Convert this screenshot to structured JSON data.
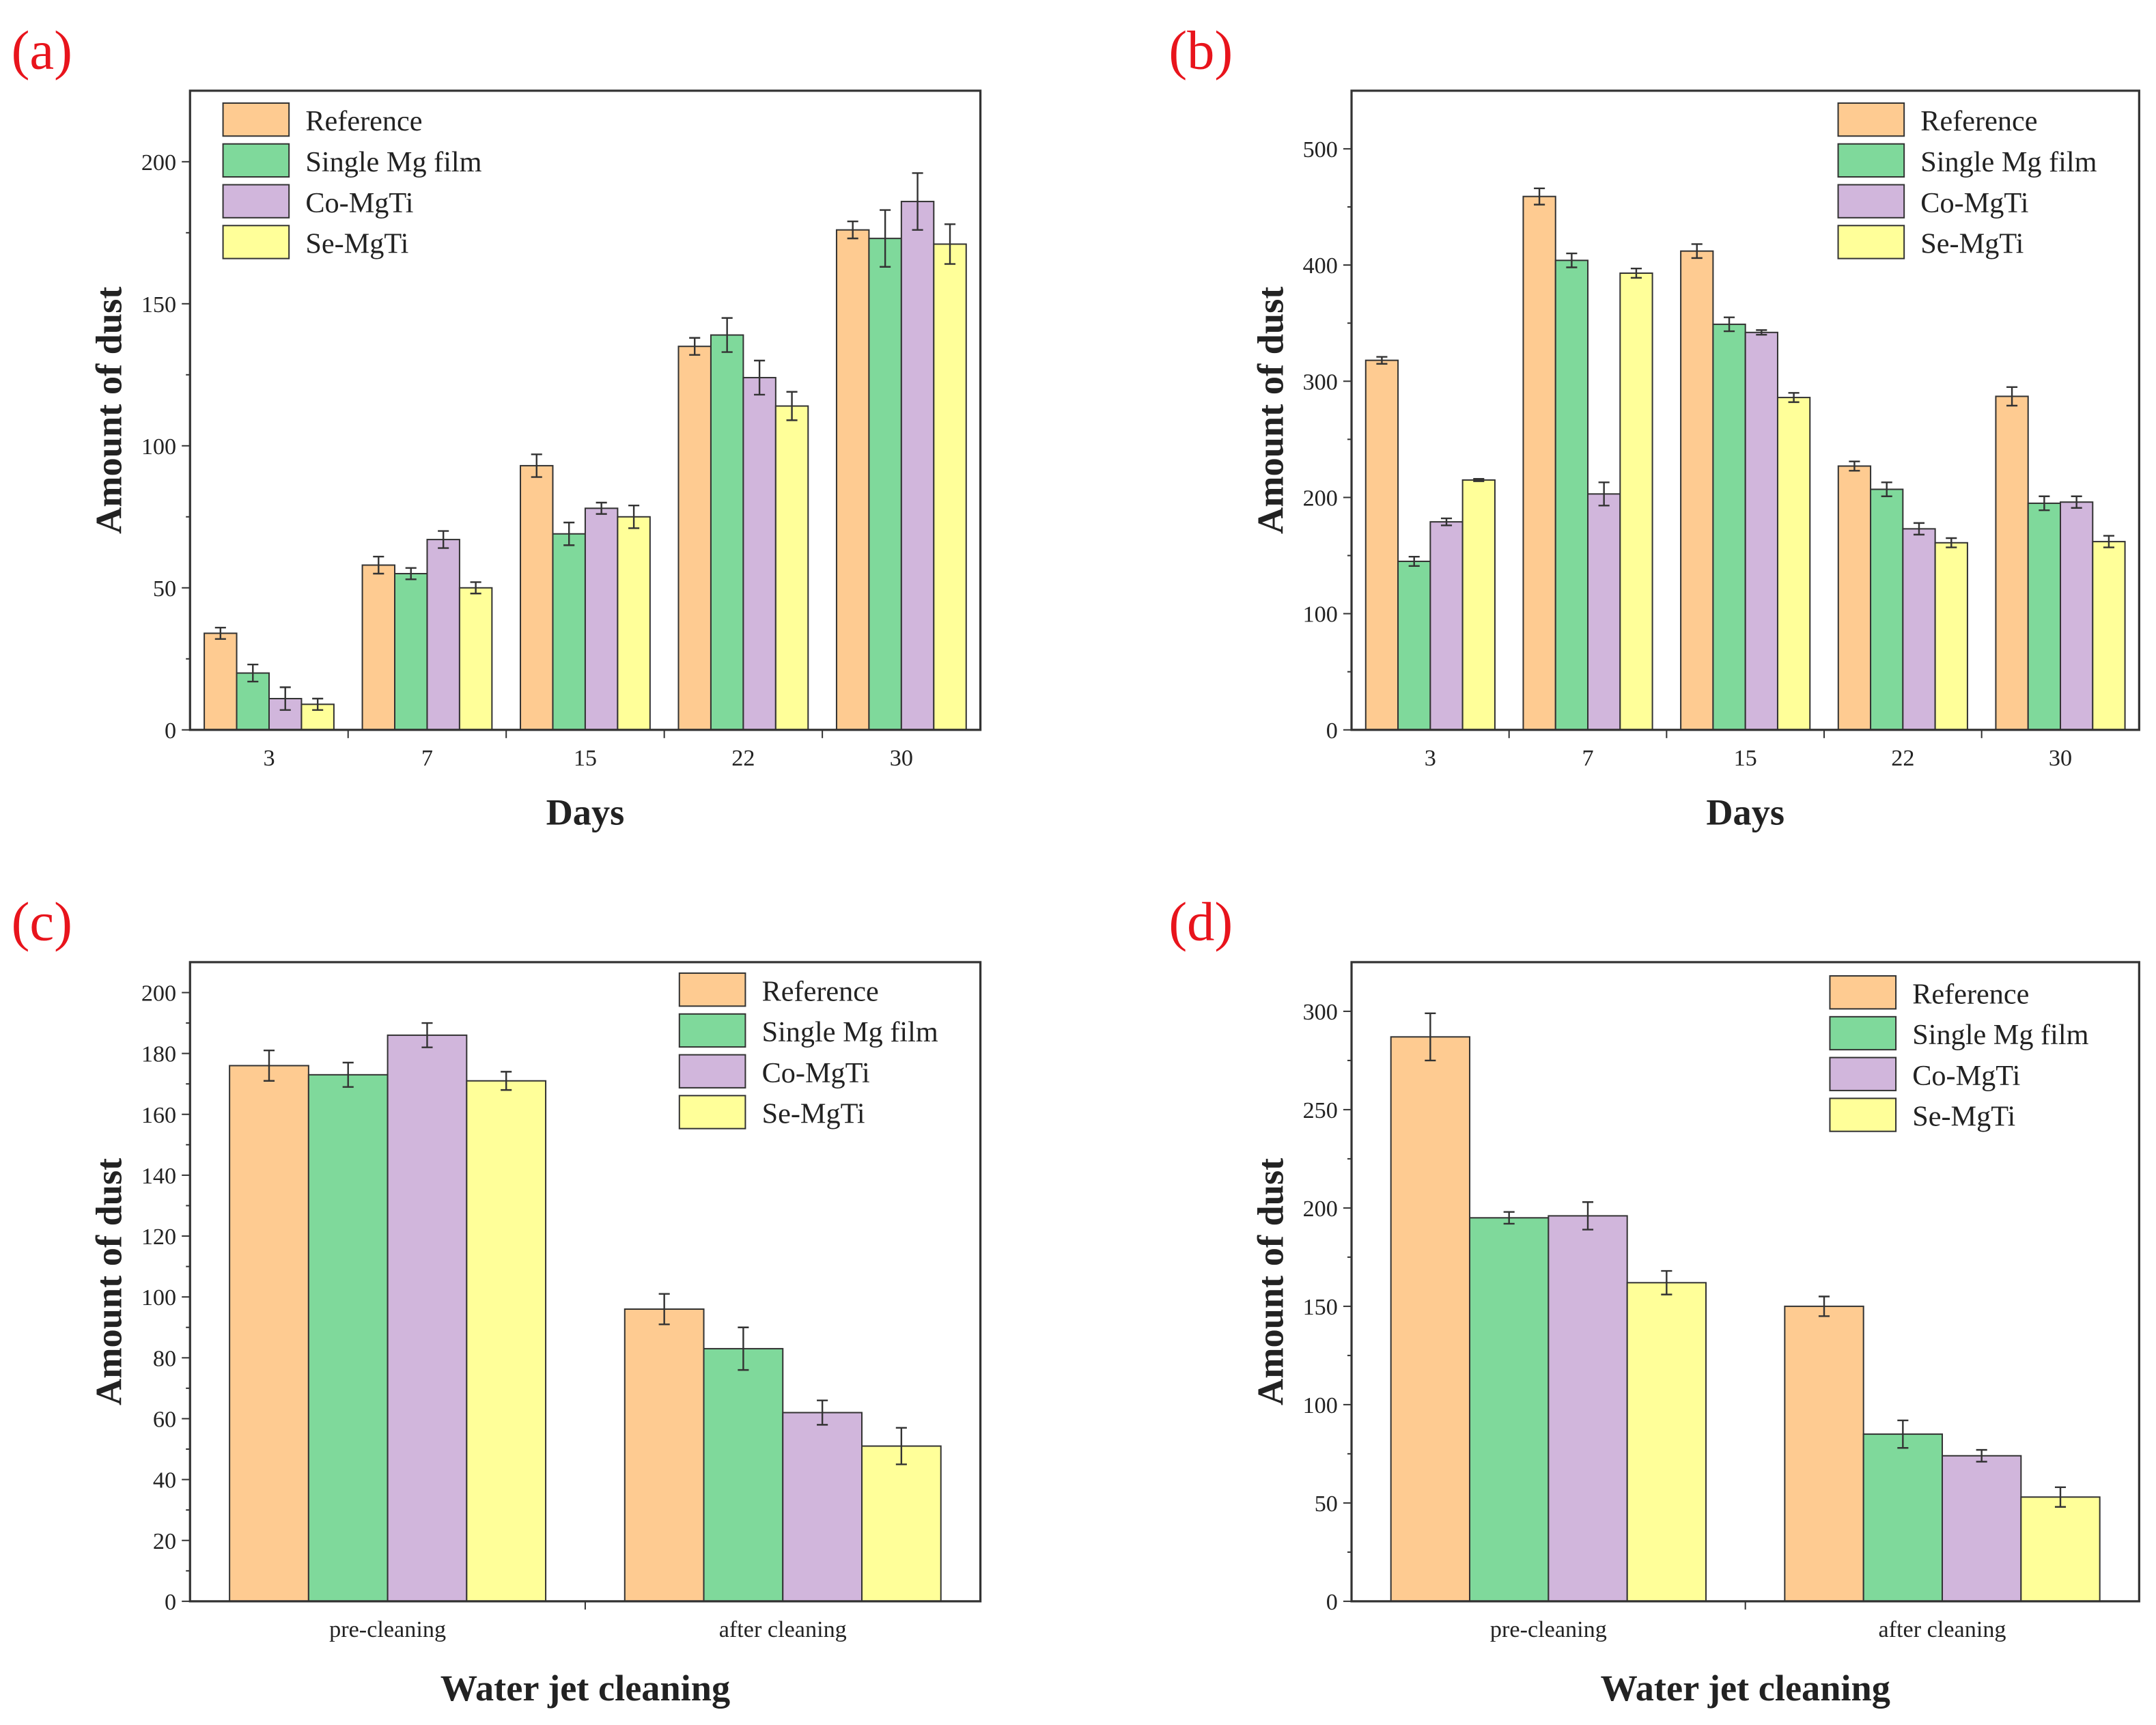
{
  "colors": {
    "Reference": "#fecb91",
    "Single Mg film": "#7fd99b",
    "Co-MgTi": "#d1b6dc",
    "Se-MgTi": "#ffff99"
  },
  "chart_data": [
    {
      "type": "bar",
      "panel_label": "(a)",
      "xlabel": "Days",
      "ylabel": "Amount of dust",
      "categories": [
        "3",
        "7",
        "15",
        "22",
        "30"
      ],
      "ylim": [
        0,
        225
      ],
      "yticks": [
        0,
        50,
        100,
        150,
        200
      ],
      "legend": "top-left",
      "series": [
        {
          "name": "Reference",
          "values": [
            34,
            58,
            93,
            135,
            176
          ],
          "errors": [
            2,
            3,
            4,
            3,
            3
          ]
        },
        {
          "name": "Single Mg film",
          "values": [
            20,
            55,
            69,
            139,
            173
          ],
          "errors": [
            3,
            2,
            4,
            6,
            10
          ]
        },
        {
          "name": "Co-MgTi",
          "values": [
            11,
            67,
            78,
            124,
            186
          ],
          "errors": [
            4,
            3,
            2,
            6,
            10
          ]
        },
        {
          "name": "Se-MgTi",
          "values": [
            9,
            50,
            75,
            114,
            171
          ],
          "errors": [
            2,
            2,
            4,
            5,
            7
          ]
        }
      ]
    },
    {
      "type": "bar",
      "panel_label": "(b)",
      "xlabel": "Days",
      "ylabel": "Amount of dust",
      "categories": [
        "3",
        "7",
        "15",
        "22",
        "30"
      ],
      "ylim": [
        0,
        550
      ],
      "yticks": [
        0,
        100,
        200,
        300,
        400,
        500
      ],
      "legend": "top-right",
      "series": [
        {
          "name": "Reference",
          "values": [
            318,
            459,
            412,
            227,
            287
          ],
          "errors": [
            3,
            7,
            6,
            4,
            8
          ]
        },
        {
          "name": "Single Mg film",
          "values": [
            145,
            404,
            349,
            207,
            195
          ],
          "errors": [
            4,
            6,
            6,
            6,
            6
          ]
        },
        {
          "name": "Co-MgTi",
          "values": [
            179,
            203,
            342,
            173,
            196
          ],
          "errors": [
            3,
            10,
            2,
            5,
            5
          ]
        },
        {
          "name": "Se-MgTi",
          "values": [
            215,
            393,
            286,
            161,
            162
          ],
          "errors": [
            1,
            4,
            4,
            4,
            5
          ]
        }
      ]
    },
    {
      "type": "bar",
      "panel_label": "(c)",
      "xlabel": "Water jet cleaning",
      "ylabel": "Amount of dust",
      "categories": [
        "pre-cleaning",
        "after cleaning"
      ],
      "ylim": [
        0,
        210
      ],
      "yticks": [
        0,
        20,
        40,
        60,
        80,
        100,
        120,
        140,
        160,
        180,
        200
      ],
      "legend": "top-right",
      "series": [
        {
          "name": "Reference",
          "values": [
            176,
            96
          ],
          "errors": [
            5,
            5
          ]
        },
        {
          "name": "Single Mg film",
          "values": [
            173,
            83
          ],
          "errors": [
            4,
            7
          ]
        },
        {
          "name": "Co-MgTi",
          "values": [
            186,
            62
          ],
          "errors": [
            4,
            4
          ]
        },
        {
          "name": "Se-MgTi",
          "values": [
            171,
            51
          ],
          "errors": [
            3,
            6
          ]
        }
      ]
    },
    {
      "type": "bar",
      "panel_label": "(d)",
      "xlabel": "Water jet cleaning",
      "ylabel": "Amount of dust",
      "categories": [
        "pre-cleaning",
        "after cleaning"
      ],
      "ylim": [
        0,
        325
      ],
      "yticks": [
        0,
        50,
        100,
        150,
        200,
        250,
        300
      ],
      "legend": "top-right",
      "series": [
        {
          "name": "Reference",
          "values": [
            287,
            150
          ],
          "errors": [
            12,
            5
          ]
        },
        {
          "name": "Single Mg film",
          "values": [
            195,
            85
          ],
          "errors": [
            3,
            7
          ]
        },
        {
          "name": "Co-MgTi",
          "values": [
            196,
            74
          ],
          "errors": [
            7,
            3
          ]
        },
        {
          "name": "Se-MgTi",
          "values": [
            162,
            53
          ],
          "errors": [
            6,
            5
          ]
        }
      ]
    }
  ]
}
